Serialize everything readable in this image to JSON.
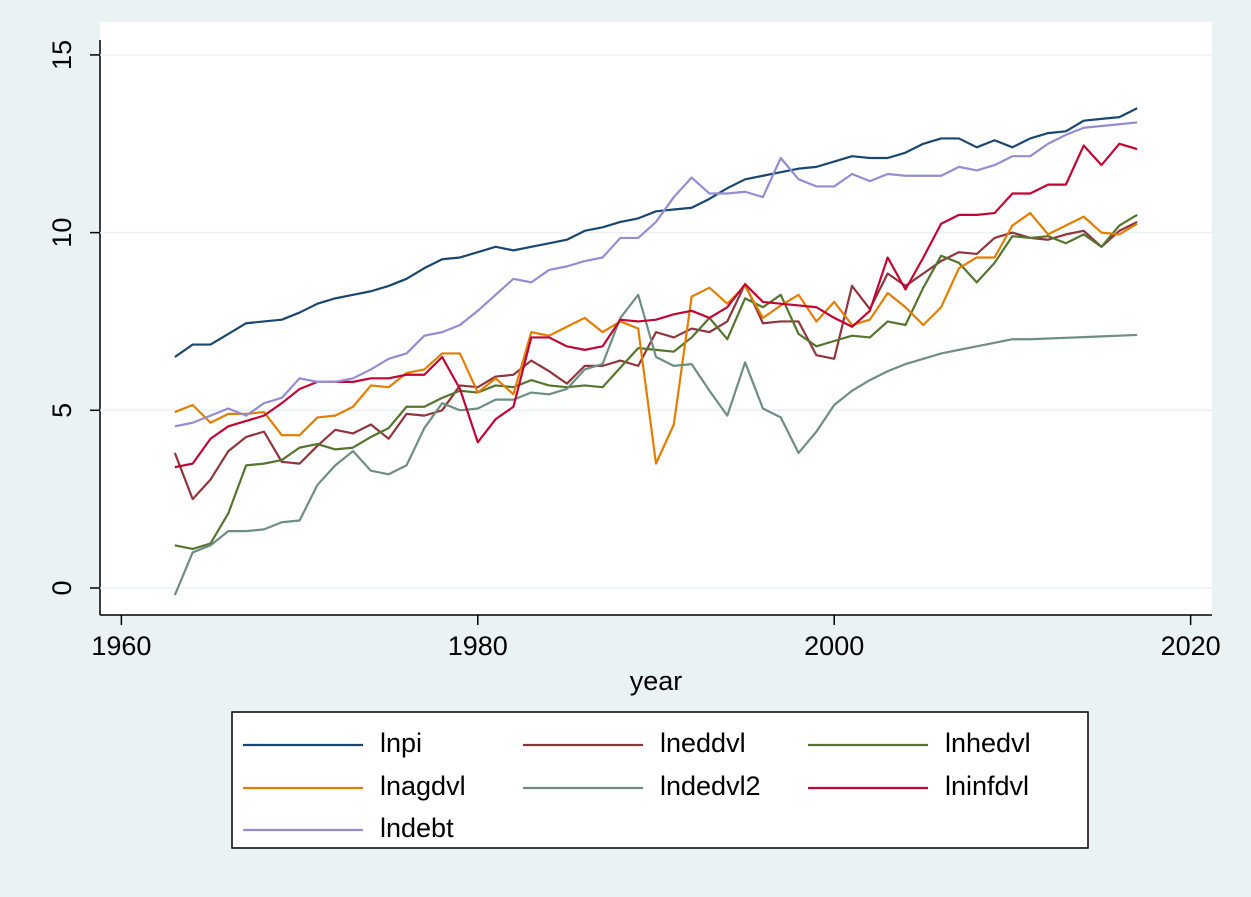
{
  "chart_data": {
    "type": "line",
    "x_label": "year",
    "x": [
      1963,
      1964,
      1965,
      1966,
      1967,
      1968,
      1969,
      1970,
      1971,
      1972,
      1973,
      1974,
      1975,
      1976,
      1977,
      1978,
      1979,
      1980,
      1981,
      1982,
      1983,
      1984,
      1985,
      1986,
      1987,
      1988,
      1989,
      1990,
      1991,
      1992,
      1993,
      1994,
      1995,
      1996,
      1997,
      1998,
      1999,
      2000,
      2001,
      2002,
      2003,
      2004,
      2005,
      2006,
      2007,
      2008,
      2009,
      2010,
      2011,
      2012,
      2013,
      2014,
      2015,
      2016,
      2017
    ],
    "xlim": [
      1958.8,
      2021.2
    ],
    "xticks": [
      1960,
      1980,
      2000,
      2020
    ],
    "ylim": [
      -0.76,
      15.42
    ],
    "yticks": [
      0,
      5,
      10,
      15
    ],
    "grid": true,
    "series": [
      {
        "name": "lnpi",
        "color": "#1a476f",
        "values": [
          6.5,
          6.85,
          6.85,
          7.15,
          7.45,
          7.5,
          7.55,
          7.75,
          8.0,
          8.15,
          8.25,
          8.35,
          8.5,
          8.7,
          9.0,
          9.25,
          9.3,
          9.45,
          9.6,
          9.5,
          9.6,
          9.7,
          9.8,
          10.05,
          10.15,
          10.3,
          10.4,
          10.6,
          10.65,
          10.7,
          10.95,
          11.25,
          11.5,
          11.6,
          11.7,
          11.8,
          11.85,
          12.0,
          12.15,
          12.1,
          12.1,
          12.25,
          12.5,
          12.65,
          12.65,
          12.4,
          12.6,
          12.4,
          12.65,
          12.8,
          12.85,
          13.15,
          13.2,
          13.25,
          13.5
        ]
      },
      {
        "name": "lneddvl",
        "color": "#90353b",
        "values": [
          3.8,
          2.5,
          3.05,
          3.85,
          4.25,
          4.4,
          3.55,
          3.5,
          4.0,
          4.45,
          4.35,
          4.6,
          4.2,
          4.9,
          4.85,
          5.0,
          5.7,
          5.65,
          5.95,
          6.0,
          6.4,
          6.1,
          5.75,
          6.25,
          6.25,
          6.4,
          6.25,
          7.2,
          7.05,
          7.3,
          7.2,
          7.5,
          8.55,
          7.45,
          7.5,
          7.5,
          6.55,
          6.45,
          8.5,
          7.85,
          8.85,
          8.5,
          8.85,
          9.2,
          9.45,
          9.4,
          9.85,
          10.0,
          9.85,
          9.8,
          9.95,
          10.05,
          9.6,
          10.05,
          10.3
        ]
      },
      {
        "name": "lnhedvl",
        "color": "#55752f",
        "values": [
          1.2,
          1.1,
          1.25,
          2.1,
          3.45,
          3.5,
          3.6,
          3.95,
          4.05,
          3.9,
          3.95,
          4.25,
          4.5,
          5.1,
          5.1,
          5.35,
          5.55,
          5.5,
          5.7,
          5.65,
          5.85,
          5.7,
          5.65,
          5.7,
          5.65,
          6.2,
          6.75,
          6.7,
          6.65,
          7.05,
          7.6,
          7.0,
          8.15,
          7.9,
          8.25,
          7.15,
          6.8,
          6.95,
          7.1,
          7.05,
          7.5,
          7.4,
          8.45,
          9.35,
          9.15,
          8.6,
          9.15,
          9.9,
          9.85,
          9.9,
          9.7,
          9.95,
          9.6,
          10.2,
          10.5
        ]
      },
      {
        "name": "lnagdvl",
        "color": "#e37e00",
        "values": [
          4.95,
          5.15,
          4.65,
          4.9,
          4.9,
          4.95,
          4.3,
          4.3,
          4.8,
          4.85,
          5.1,
          5.7,
          5.65,
          6.05,
          6.15,
          6.6,
          6.6,
          5.5,
          5.9,
          5.45,
          7.2,
          7.1,
          7.35,
          7.6,
          7.2,
          7.5,
          7.3,
          3.5,
          4.6,
          8.2,
          8.45,
          8.0,
          8.5,
          7.6,
          7.95,
          8.25,
          7.5,
          8.05,
          7.4,
          7.55,
          8.3,
          7.9,
          7.4,
          7.9,
          9.0,
          9.3,
          9.3,
          10.2,
          10.55,
          9.95,
          10.2,
          10.45,
          10.0,
          9.95,
          10.25
        ]
      },
      {
        "name": "lndedvl2",
        "color": "#6e8e84",
        "values": [
          -0.2,
          1.0,
          1.2,
          1.6,
          1.6,
          1.65,
          1.85,
          1.9,
          2.9,
          3.45,
          3.85,
          3.3,
          3.2,
          3.45,
          4.5,
          5.2,
          5.0,
          5.05,
          5.3,
          5.3,
          5.5,
          5.45,
          5.6,
          6.15,
          6.3,
          7.6,
          8.25,
          6.5,
          6.25,
          6.3,
          5.55,
          4.85,
          6.35,
          5.05,
          4.8,
          3.8,
          4.4,
          5.15,
          5.55,
          5.85,
          6.1,
          6.3,
          6.45,
          6.6,
          6.7,
          6.8,
          6.9,
          7.0,
          7.0,
          7.02,
          7.04,
          7.06,
          7.08,
          7.1,
          7.12
        ]
      },
      {
        "name": "lninfdvl",
        "color": "#c10534",
        "values": [
          3.4,
          3.5,
          4.2,
          4.55,
          4.7,
          4.85,
          5.2,
          5.6,
          5.8,
          5.8,
          5.8,
          5.9,
          5.9,
          6.0,
          6.0,
          6.5,
          5.6,
          4.1,
          4.75,
          5.1,
          7.05,
          7.05,
          6.8,
          6.7,
          6.8,
          7.55,
          7.5,
          7.55,
          7.7,
          7.8,
          7.6,
          7.9,
          8.55,
          8.05,
          8.0,
          7.95,
          7.9,
          7.6,
          7.35,
          7.8,
          9.3,
          8.4,
          9.3,
          10.25,
          10.5,
          10.5,
          10.55,
          11.1,
          11.1,
          11.35,
          11.35,
          12.45,
          11.9,
          12.5,
          12.35
        ]
      },
      {
        "name": "lndebt",
        "color": "#938dd2",
        "values": [
          4.55,
          4.65,
          4.85,
          5.05,
          4.85,
          5.2,
          5.35,
          5.9,
          5.8,
          5.8,
          5.9,
          6.15,
          6.45,
          6.6,
          7.1,
          7.2,
          7.4,
          7.8,
          8.25,
          8.7,
          8.6,
          8.95,
          9.05,
          9.2,
          9.3,
          9.85,
          9.85,
          10.3,
          11.0,
          11.55,
          11.1,
          11.1,
          11.15,
          11.0,
          12.1,
          11.5,
          11.3,
          11.3,
          11.65,
          11.45,
          11.65,
          11.6,
          11.6,
          11.6,
          11.85,
          11.75,
          11.9,
          12.15,
          12.15,
          12.5,
          12.75,
          12.95,
          13.0,
          13.05,
          13.1
        ]
      }
    ]
  }
}
